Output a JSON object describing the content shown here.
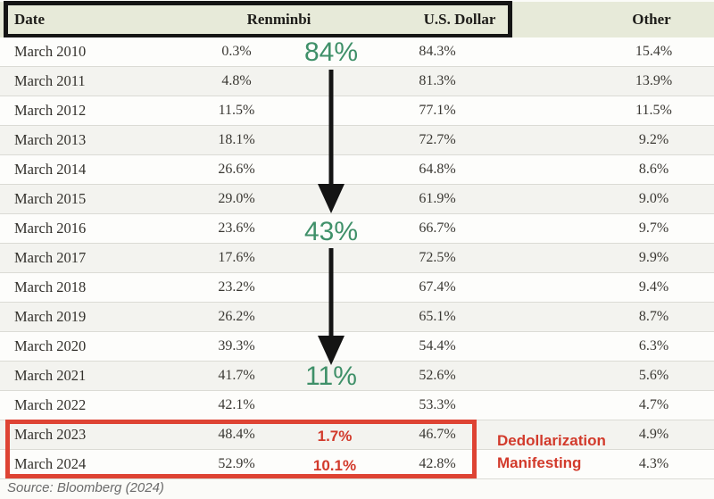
{
  "header": {
    "columns": [
      "Date",
      "Renminbi",
      "U.S. Dollar",
      "Other"
    ]
  },
  "table": {
    "rows": [
      {
        "date": "March 2010",
        "renminbi": "0.3%",
        "usd": "84.3%",
        "other": "15.4%"
      },
      {
        "date": "March 2011",
        "renminbi": "4.8%",
        "usd": "81.3%",
        "other": "13.9%"
      },
      {
        "date": "March 2012",
        "renminbi": "11.5%",
        "usd": "77.1%",
        "other": "11.5%"
      },
      {
        "date": "March 2013",
        "renminbi": "18.1%",
        "usd": "72.7%",
        "other": "9.2%"
      },
      {
        "date": "March 2014",
        "renminbi": "26.6%",
        "usd": "64.8%",
        "other": "8.6%"
      },
      {
        "date": "March 2015",
        "renminbi": "29.0%",
        "usd": "61.9%",
        "other": "9.0%"
      },
      {
        "date": "March 2016",
        "renminbi": "23.6%",
        "usd": "66.7%",
        "other": "9.7%"
      },
      {
        "date": "March 2017",
        "renminbi": "17.6%",
        "usd": "72.5%",
        "other": "9.9%"
      },
      {
        "date": "March 2018",
        "renminbi": "23.2%",
        "usd": "67.4%",
        "other": "9.4%"
      },
      {
        "date": "March 2019",
        "renminbi": "26.2%",
        "usd": "65.1%",
        "other": "8.7%"
      },
      {
        "date": "March 2020",
        "renminbi": "39.3%",
        "usd": "54.4%",
        "other": "6.3%"
      },
      {
        "date": "March 2021",
        "renminbi": "41.7%",
        "usd": "52.6%",
        "other": "5.6%"
      },
      {
        "date": "March 2022",
        "renminbi": "42.1%",
        "usd": "53.3%",
        "other": "4.7%"
      },
      {
        "date": "March 2023",
        "renminbi": "48.4%",
        "usd": "46.7%",
        "other": "4.9%"
      },
      {
        "date": "March 2024",
        "renminbi": "52.9%",
        "usd": "42.8%",
        "other": "4.3%"
      }
    ]
  },
  "annotations": {
    "usd_share_start": "84%",
    "usd_share_mid": "43%",
    "usd_share_end": "11%",
    "rmb_gain_2023": "1.7%",
    "rmb_gain_2024": "10.1%",
    "callout_line1": "Dedollarization",
    "callout_line2": "Manifesting"
  },
  "source": "Source: Bloomberg (2024)",
  "colors": {
    "header_bg": "#e7ead9",
    "header_box_border": "#151515",
    "annotation_green": "#3f9069",
    "annotation_red": "#d23a2b",
    "red_box_border": "#de4333",
    "row_alt_bg": "#f3f3ef",
    "arrow_black": "#141414"
  },
  "chart_data": {
    "type": "table",
    "title": "",
    "columns": [
      "Date",
      "Renminbi",
      "U.S. Dollar",
      "Other"
    ],
    "rows": [
      [
        "March 2010",
        0.3,
        84.3,
        15.4
      ],
      [
        "March 2011",
        4.8,
        81.3,
        13.9
      ],
      [
        "March 2012",
        11.5,
        77.1,
        11.5
      ],
      [
        "March 2013",
        18.1,
        72.7,
        9.2
      ],
      [
        "March 2014",
        26.6,
        64.8,
        8.6
      ],
      [
        "March 2015",
        29.0,
        61.9,
        9.0
      ],
      [
        "March 2016",
        23.6,
        66.7,
        9.7
      ],
      [
        "March 2017",
        17.6,
        72.5,
        9.9
      ],
      [
        "March 2018",
        23.2,
        67.4,
        9.4
      ],
      [
        "March 2019",
        26.2,
        65.1,
        8.7
      ],
      [
        "March 2020",
        39.3,
        54.4,
        6.3
      ],
      [
        "March 2021",
        41.7,
        52.6,
        5.6
      ],
      [
        "March 2022",
        42.1,
        53.3,
        4.7
      ],
      [
        "March 2023",
        48.4,
        46.7,
        4.9
      ],
      [
        "March 2024",
        52.9,
        42.8,
        4.3
      ]
    ],
    "annotations": [
      {
        "text": "84%",
        "color": "green",
        "near_row": "March 2010"
      },
      {
        "text": "43%",
        "color": "green",
        "near_row": "March 2016"
      },
      {
        "text": "11%",
        "color": "green",
        "near_row": "March 2021"
      },
      {
        "text": "1.7%",
        "color": "red",
        "near_row": "March 2023"
      },
      {
        "text": "10.1%",
        "color": "red",
        "near_row": "March 2024"
      },
      {
        "text": "Dedollarization Manifesting",
        "color": "red",
        "near_row": "March 2023–2024"
      }
    ],
    "legend_position": "none",
    "grid": "horizontal-separators"
  }
}
